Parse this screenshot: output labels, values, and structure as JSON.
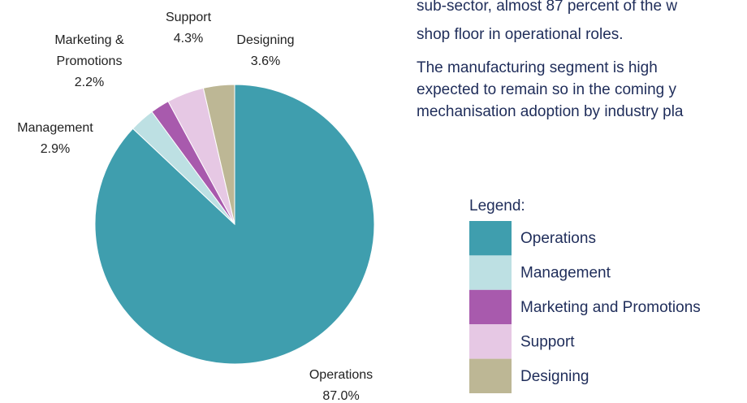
{
  "document": {
    "paragraphs": [
      [
        "sub-sector, almost 87 percent of the w",
        "shop floor in operational roles."
      ],
      [
        "The manufacturing segment is high",
        "expected to remain so in the coming y",
        "mechanisation adoption by industry pla"
      ]
    ]
  },
  "chart_data": {
    "type": "pie",
    "categories": [
      "Operations",
      "Management",
      "Marketing and Promotions",
      "Support",
      "Designing"
    ],
    "slice_labels": [
      [
        "Operations"
      ],
      [
        "Management"
      ],
      [
        "Marketing &",
        "Promotions"
      ],
      [
        "Support"
      ],
      [
        "Designing"
      ]
    ],
    "values": [
      87,
      2.9,
      2.2,
      4.3,
      3.6
    ],
    "value_labels": [
      "87.0%",
      "2.9%",
      "2.2%",
      "4.3%",
      "3.6%"
    ],
    "colors": [
      "#3f9eae",
      "#bde0e3",
      "#a85aad",
      "#e6c8e4",
      "#bdb795"
    ],
    "legend_title": "Legend:",
    "legend": "right"
  }
}
